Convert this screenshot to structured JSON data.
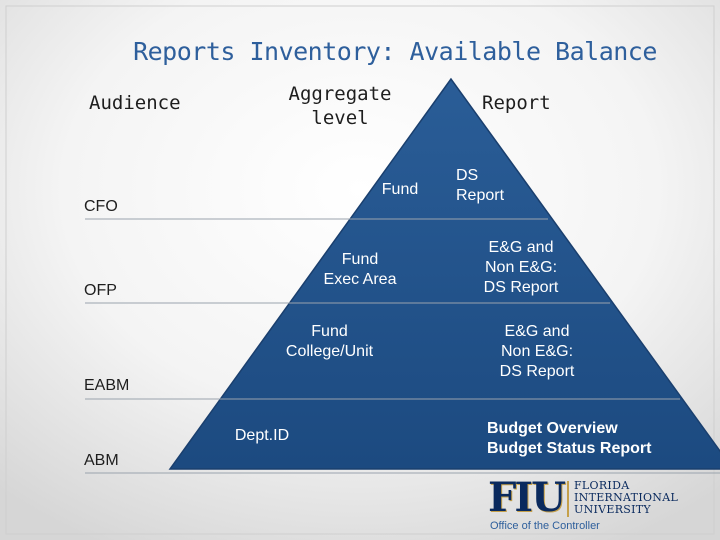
{
  "title": "Reports Inventory: Available Balance",
  "headers": {
    "audience": "Audience",
    "aggregate_line1": "Aggregate",
    "aggregate_line2": "level",
    "report": "Report"
  },
  "rows": [
    {
      "audience": "CFO",
      "level_lines": [
        "Fund"
      ],
      "report_lines": [
        "DS",
        "Report"
      ]
    },
    {
      "audience": "OFP",
      "level_lines": [
        "Fund",
        "Exec Area"
      ],
      "report_lines": [
        "E&G and",
        "Non E&G:",
        "DS Report"
      ]
    },
    {
      "audience": "EABM",
      "level_lines": [
        "Fund",
        "College/Unit"
      ],
      "report_lines": [
        "E&G and",
        "Non E&G:",
        "DS Report"
      ]
    },
    {
      "audience": "ABM",
      "level_lines": [
        "Dept.ID"
      ],
      "report_lines": [
        "Budget Overview",
        "Budget Status Report"
      ]
    }
  ],
  "logo": {
    "letters": "FIU",
    "name_lines": [
      "FLORIDA",
      "INTERNATIONAL",
      "UNIVERSITY"
    ],
    "caption": "Office of the Controller"
  },
  "colors": {
    "title": "#2e5f9c",
    "pyramid": "#1f4f86",
    "logo_navy": "#0a2a5e",
    "logo_gold": "#c5a04a"
  }
}
